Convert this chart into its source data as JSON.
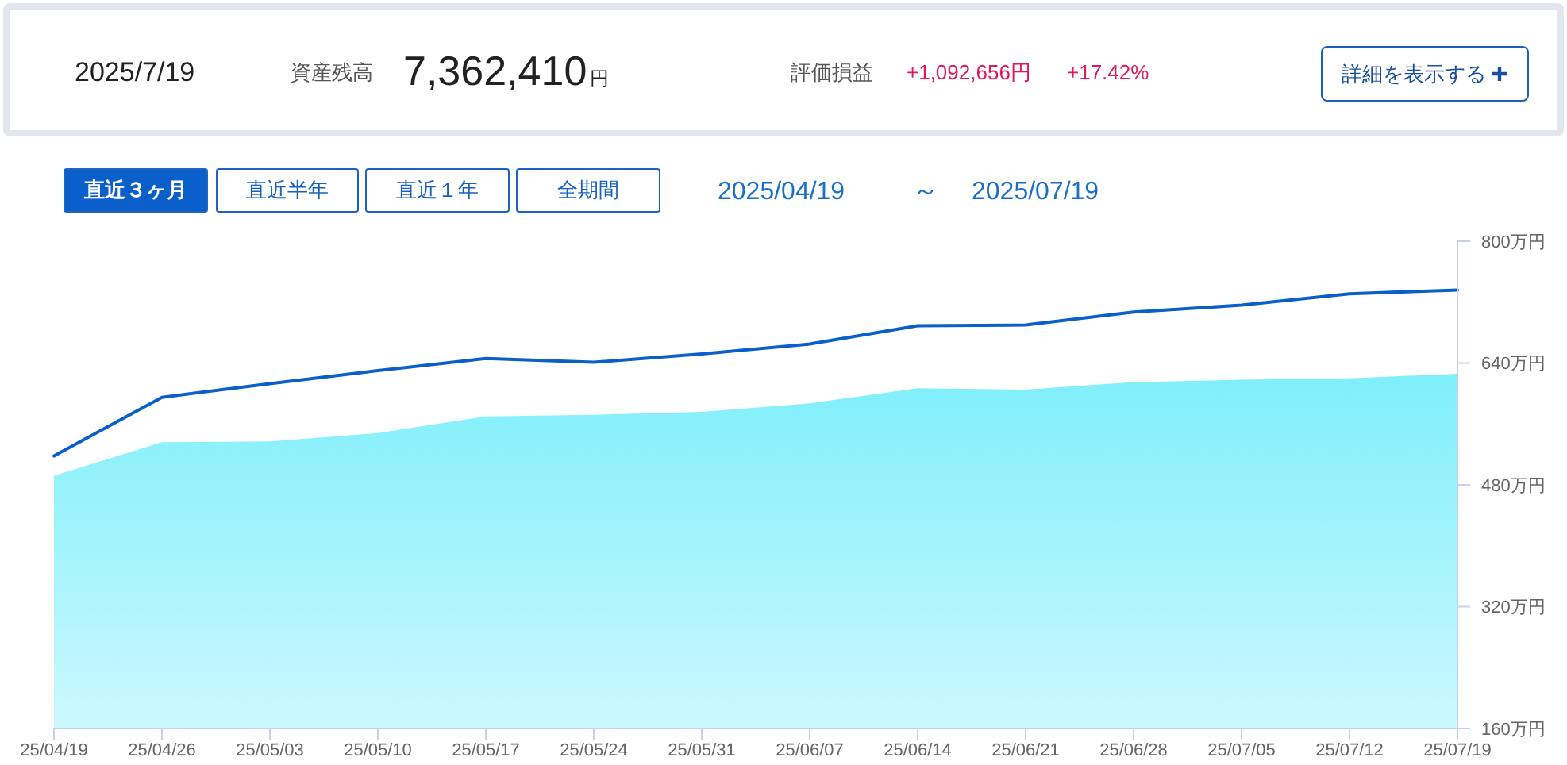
{
  "chart_data": [
    {
      "type": "other",
      "annotations": [
        "2025/7/19",
        "資産残高",
        "7,362,410",
        "円",
        "評価損益",
        "+1,092,656円",
        "+17.42%",
        "詳細を表示する"
      ]
    },
    {
      "type": "area",
      "annotations": [
        "直近３ヶ月",
        "直近半年",
        "直近１年",
        "全期間",
        "2025/04/19",
        "～",
        "2025/07/19"
      ],
      "categories": [
        "25/04/19",
        "25/04/26",
        "25/05/03",
        "25/05/10",
        "25/05/17",
        "25/05/24",
        "25/05/31",
        "25/06/07",
        "25/06/14",
        "25/06/21",
        "25/06/28",
        "25/07/05",
        "25/07/12",
        "25/07/19"
      ],
      "series": [
        {
          "type": "area",
          "color": "#7eeffa",
          "values": [
            492,
            536,
            537,
            548,
            570,
            572,
            576,
            587,
            607,
            605,
            615,
            618,
            620,
            626
          ]
        },
        {
          "type": "line",
          "color": "#0a5fc8",
          "values": [
            518,
            595,
            613,
            630,
            646,
            641,
            652,
            665,
            689,
            690,
            707,
            716,
            731,
            736
          ]
        }
      ],
      "ylim": [
        160,
        800
      ],
      "yticks": [
        {
          "value": 160,
          "label": "160万円"
        },
        {
          "value": 320,
          "label": "320万円"
        },
        {
          "value": 480,
          "label": "480万円"
        },
        {
          "value": 640,
          "label": "640万円"
        },
        {
          "value": 800,
          "label": "800万円"
        }
      ]
    }
  ]
}
